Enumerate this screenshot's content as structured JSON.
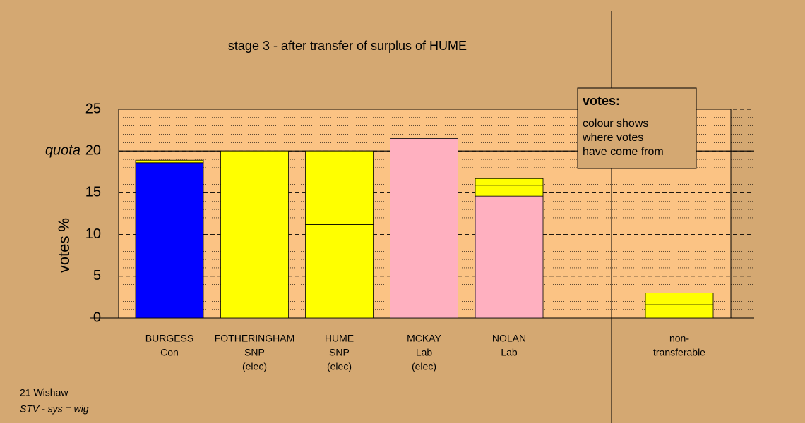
{
  "chart_data": {
    "type": "stacked_bar",
    "title": "stage 3 - after transfer of surplus of HUME",
    "y_label": "votes %",
    "categories": [
      [
        "BURGESS",
        "Con"
      ],
      [
        "FOTHERINGHAM",
        "SNP",
        "(elec)"
      ],
      [
        "HUME",
        "SNP",
        "(elec)"
      ],
      [
        "MCKAY",
        "Lab",
        "(elec)"
      ],
      [
        "NOLAN",
        "Lab"
      ],
      [
        "non-",
        "transferable"
      ]
    ],
    "series": [
      {
        "values": [
          18.6,
          20,
          11.2,
          21.5,
          14.6,
          1.6
        ],
        "colors": [
          "#0000ff",
          "#ffff00",
          "#ffff00",
          "#ffb0c0",
          "#ffb0c0",
          "#ffff00"
        ]
      },
      {
        "values": [
          0.3,
          null,
          8.8,
          null,
          1.3,
          1.4
        ],
        "colors": [
          "#ffff00",
          null,
          "#ffff00",
          null,
          "#ffff00",
          "#ffff00"
        ]
      },
      {
        "values": [
          null,
          null,
          null,
          null,
          0.8,
          null
        ],
        "colors": [
          null,
          null,
          null,
          null,
          "#ffff00",
          null
        ]
      }
    ],
    "ylim": [
      0,
      25
    ],
    "yticks": [
      0,
      5,
      10,
      15,
      20,
      25
    ],
    "yminorticks": [
      1,
      2,
      3,
      4,
      6,
      7,
      8,
      9,
      11,
      12,
      13,
      14,
      16,
      17,
      18,
      19,
      21,
      22,
      23,
      24
    ],
    "quota": {
      "value": 20,
      "label": "quota"
    },
    "legend": {
      "title": "votes:",
      "lines": [
        "colour shows",
        "where votes",
        "have come from"
      ]
    }
  },
  "footer": {
    "area": "21 Wishaw",
    "system": "STV - sys = wig"
  }
}
